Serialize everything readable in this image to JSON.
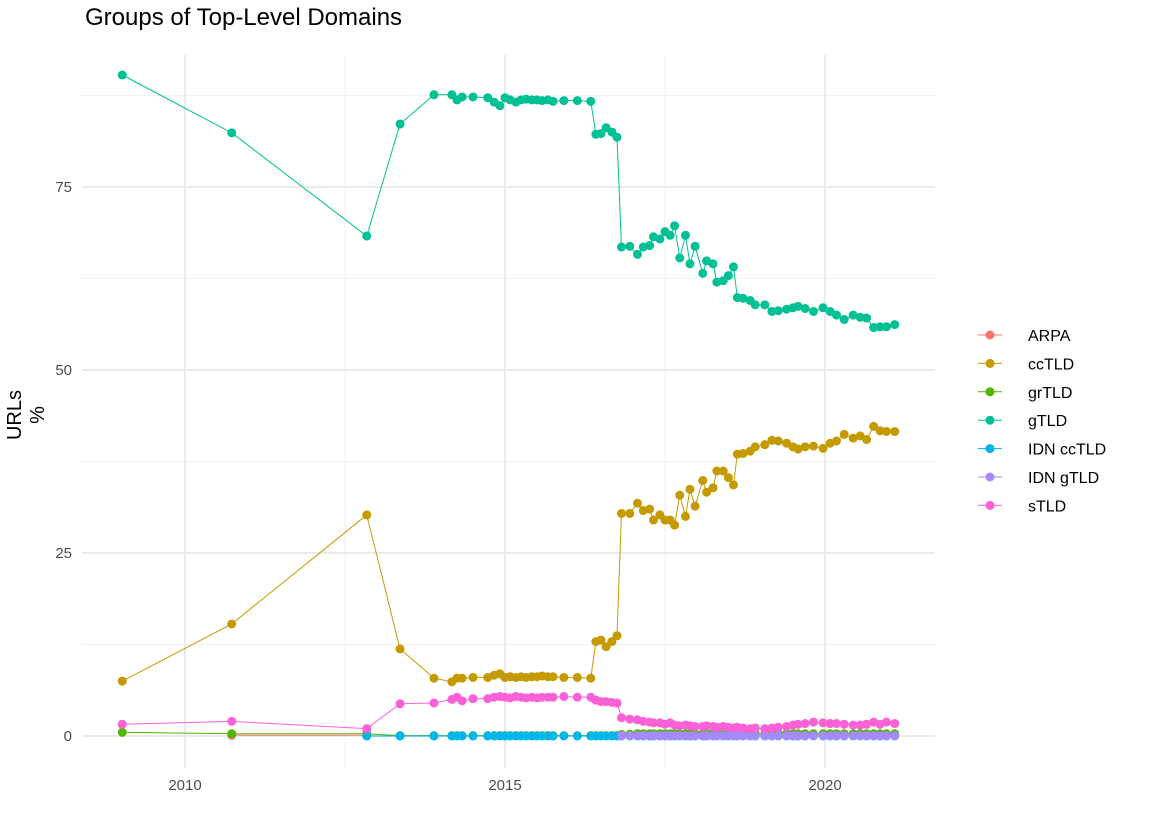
{
  "chart_data": {
    "type": "line",
    "title": "Groups of Top-Level Domains",
    "xlabel": "",
    "ylabel": "URLs %",
    "xlim": [
      2008.5,
      2021.7
    ],
    "ylim": [
      -4,
      97
    ],
    "x_ticks": [
      2010,
      2015,
      2020
    ],
    "y_ticks": [
      0,
      25,
      50,
      75
    ],
    "grid": true,
    "legend_position": "right",
    "x": [
      2009.02,
      2010.73,
      2012.84,
      2013.36,
      2013.89,
      2014.17,
      2014.25,
      2014.33,
      2014.5,
      2014.73,
      2014.83,
      2014.92,
      2015.0,
      2015.08,
      2015.17,
      2015.25,
      2015.33,
      2015.42,
      2015.5,
      2015.58,
      2015.67,
      2015.75,
      2015.92,
      2016.13,
      2016.34,
      2016.42,
      2016.5,
      2016.58,
      2016.67,
      2016.75,
      2016.82,
      2016.95,
      2017.07,
      2017.16,
      2017.26,
      2017.32,
      2017.42,
      2017.5,
      2017.58,
      2017.65,
      2017.73,
      2017.82,
      2017.89,
      2017.97,
      2018.09,
      2018.15,
      2018.25,
      2018.31,
      2018.41,
      2018.49,
      2018.57,
      2018.63,
      2018.72,
      2018.83,
      2018.91,
      2019.06,
      2019.17,
      2019.27,
      2019.4,
      2019.5,
      2019.58,
      2019.69,
      2019.82,
      2019.97,
      2020.08,
      2020.18,
      2020.3,
      2020.44,
      2020.55,
      2020.65,
      2020.76,
      2020.86,
      2020.96,
      2021.09
    ],
    "series": [
      {
        "name": "ARPA",
        "color": "#F8766D",
        "values": [
          null,
          0.1,
          0.1,
          null,
          null,
          null,
          null,
          null,
          null,
          null,
          null,
          null,
          null,
          null,
          null,
          null,
          null,
          null,
          null,
          null,
          null,
          null,
          null,
          null,
          null,
          null,
          null,
          null,
          null,
          null,
          null,
          null,
          null,
          null,
          null,
          null,
          null,
          null,
          null,
          null,
          null,
          null,
          null,
          null,
          null,
          null,
          null,
          null,
          null,
          null,
          null,
          null,
          null,
          null,
          null,
          null,
          null,
          null,
          null,
          null,
          null,
          null,
          null,
          null,
          null,
          null,
          null,
          null,
          null,
          null,
          null,
          null,
          null,
          null
        ]
      },
      {
        "name": "ccTLD",
        "color": "#C49A00",
        "values": [
          7.5,
          15.3,
          30.2,
          11.9,
          7.9,
          7.4,
          7.9,
          7.9,
          8.0,
          8.0,
          8.3,
          8.5,
          8.0,
          8.1,
          8.0,
          8.1,
          8.0,
          8.1,
          8.1,
          8.2,
          8.1,
          8.1,
          8.0,
          8.0,
          7.9,
          12.9,
          13.1,
          12.2,
          12.9,
          13.7,
          30.4,
          30.4,
          31.8,
          30.8,
          31.0,
          29.5,
          30.2,
          29.5,
          29.5,
          28.8,
          32.9,
          30.0,
          33.7,
          31.4,
          34.9,
          33.3,
          33.9,
          36.2,
          36.2,
          35.3,
          34.3,
          38.5,
          38.6,
          38.9,
          39.5,
          39.8,
          40.4,
          40.3,
          40.0,
          39.5,
          39.2,
          39.5,
          39.6,
          39.3,
          40.0,
          40.3,
          41.2,
          40.7,
          41.0,
          40.5,
          42.3,
          41.7,
          41.6,
          41.6
        ]
      },
      {
        "name": "grTLD",
        "color": "#53B400",
        "values": [
          0.5,
          0.3,
          0.3,
          0.05,
          0.05,
          0.05,
          0.05,
          0.05,
          0.05,
          0.05,
          0.05,
          0.05,
          0.05,
          0.05,
          0.05,
          0.05,
          0.05,
          0.05,
          0.05,
          0.05,
          0.05,
          0.05,
          0.05,
          0.05,
          0.05,
          0.05,
          0.05,
          0.05,
          0.05,
          0.05,
          0.2,
          0.25,
          0.3,
          0.3,
          0.3,
          0.3,
          0.3,
          0.3,
          0.3,
          0.3,
          0.3,
          0.3,
          0.3,
          0.3,
          0.35,
          0.35,
          0.3,
          0.3,
          0.3,
          0.3,
          0.3,
          0.3,
          0.3,
          0.3,
          0.3,
          0.3,
          0.3,
          0.3,
          0.3,
          0.3,
          0.3,
          0.3,
          0.3,
          0.3,
          0.3,
          0.3,
          0.3,
          0.3,
          0.3,
          0.3,
          0.3,
          0.3,
          0.3,
          0.3
        ]
      },
      {
        "name": "gTLD",
        "color": "#00C094",
        "values": [
          90.3,
          82.4,
          68.3,
          83.6,
          87.6,
          87.6,
          86.9,
          87.3,
          87.3,
          87.2,
          86.6,
          86.1,
          87.2,
          86.9,
          86.6,
          86.9,
          87.0,
          86.9,
          86.9,
          86.8,
          86.9,
          86.7,
          86.8,
          86.8,
          86.7,
          82.2,
          82.3,
          83.1,
          82.5,
          81.8,
          66.8,
          66.9,
          65.8,
          66.8,
          67.0,
          68.2,
          67.9,
          68.9,
          68.4,
          69.7,
          65.3,
          68.4,
          64.5,
          66.9,
          63.2,
          64.9,
          64.5,
          62.0,
          62.2,
          62.9,
          64.1,
          59.9,
          59.8,
          59.5,
          58.9,
          58.9,
          58.0,
          58.1,
          58.3,
          58.5,
          58.7,
          58.4,
          58.0,
          58.5,
          58.0,
          57.5,
          56.9,
          57.5,
          57.2,
          57.1,
          55.8,
          55.9,
          55.9,
          56.2
        ]
      },
      {
        "name": "IDN ccTLD",
        "color": "#00B6EB",
        "values": [
          null,
          null,
          0.0,
          0.0,
          0.0,
          0.0,
          0.0,
          0.0,
          0.0,
          0.0,
          0.0,
          0.0,
          0.0,
          0.0,
          0.0,
          0.0,
          0.0,
          0.0,
          0.0,
          0.0,
          0.0,
          0.0,
          0.0,
          0.0,
          0.0,
          0.0,
          0.0,
          0.0,
          0.0,
          0.0,
          0.0,
          0.0,
          0.0,
          0.0,
          0.0,
          0.0,
          0.0,
          0.0,
          0.0,
          0.0,
          0.0,
          0.0,
          0.0,
          0.0,
          0.0,
          0.0,
          0.0,
          0.0,
          0.0,
          0.0,
          0.0,
          0.0,
          0.0,
          0.0,
          0.0,
          0.0,
          0.0,
          0.0,
          0.0,
          0.0,
          0.0,
          0.0,
          0.0,
          0.0,
          0.0,
          0.0,
          0.0,
          0.0,
          0.0,
          0.0,
          0.0,
          0.0,
          0.0,
          0.0
        ]
      },
      {
        "name": "IDN gTLD",
        "color": "#A58AFF",
        "values": [
          null,
          null,
          null,
          null,
          null,
          null,
          null,
          null,
          null,
          null,
          null,
          null,
          null,
          null,
          null,
          null,
          null,
          null,
          null,
          null,
          null,
          null,
          null,
          null,
          null,
          null,
          null,
          null,
          null,
          null,
          0.05,
          0.05,
          0.05,
          0.05,
          0.05,
          0.05,
          0.05,
          0.05,
          0.05,
          0.05,
          0.05,
          0.05,
          0.05,
          0.05,
          0.05,
          0.05,
          0.05,
          0.05,
          0.05,
          0.05,
          0.05,
          0.05,
          0.05,
          0.05,
          0.05,
          0.05,
          0.05,
          0.05,
          0.05,
          0.05,
          0.05,
          0.05,
          0.05,
          0.05,
          0.05,
          0.05,
          0.05,
          0.05,
          0.05,
          0.05,
          0.05,
          0.05,
          0.05,
          0.05
        ]
      },
      {
        "name": "sTLD",
        "color": "#FB61D7",
        "values": [
          1.6,
          2.0,
          1.0,
          4.4,
          4.5,
          5.0,
          5.3,
          4.8,
          5.1,
          5.1,
          5.3,
          5.4,
          5.3,
          5.2,
          5.4,
          5.3,
          5.2,
          5.3,
          5.2,
          5.3,
          5.3,
          5.3,
          5.4,
          5.3,
          5.3,
          4.9,
          4.7,
          4.7,
          4.6,
          4.5,
          2.5,
          2.3,
          2.2,
          2.0,
          1.9,
          1.8,
          1.8,
          1.6,
          1.8,
          1.5,
          1.4,
          1.5,
          1.4,
          1.3,
          1.3,
          1.4,
          1.3,
          1.2,
          1.3,
          1.2,
          1.1,
          1.2,
          1.1,
          1.0,
          1.1,
          1.0,
          1.1,
          1.2,
          1.3,
          1.5,
          1.6,
          1.7,
          1.9,
          1.8,
          1.7,
          1.7,
          1.6,
          1.5,
          1.5,
          1.6,
          1.9,
          1.6,
          1.9,
          1.7
        ]
      }
    ]
  }
}
